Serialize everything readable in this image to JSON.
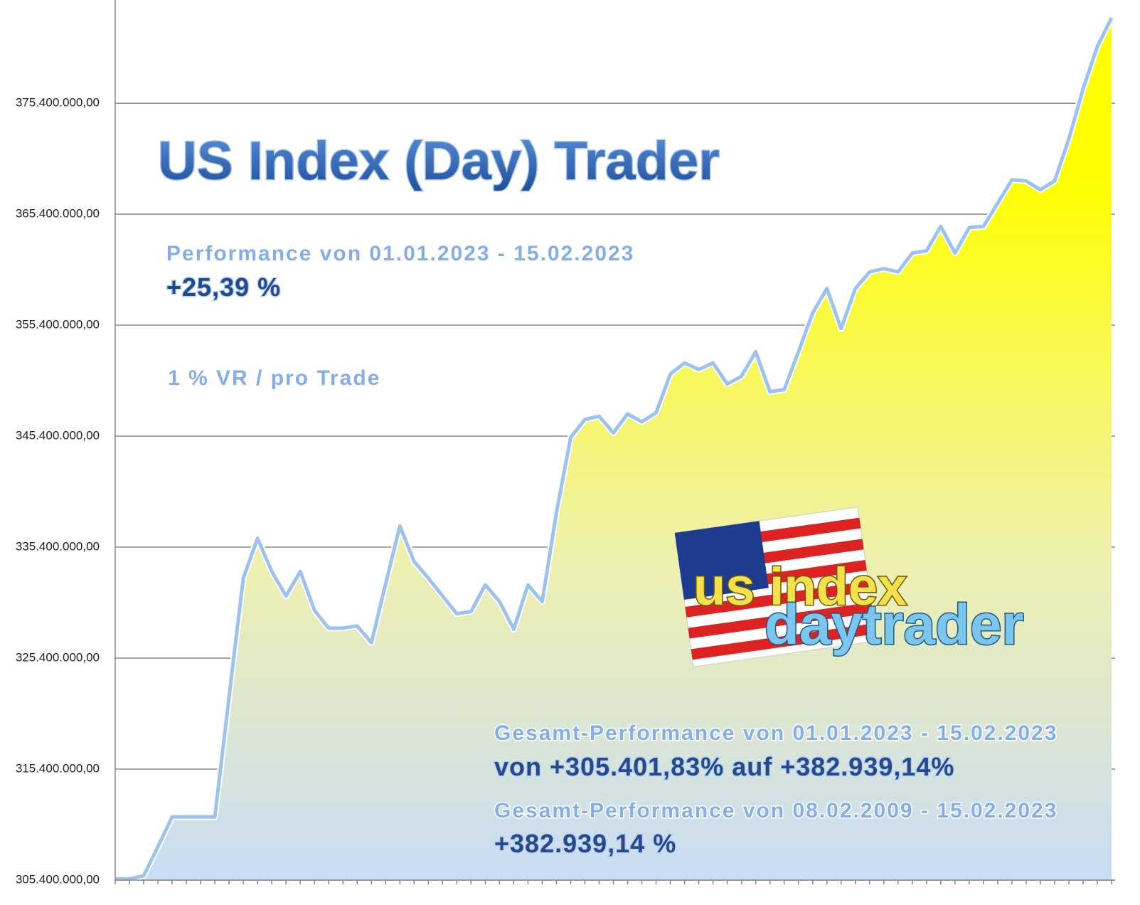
{
  "chart_data": {
    "type": "area",
    "title": "US Index (Day) Trader",
    "annotations": [
      "Performance  von  01.01.2023 - 15.02.2023",
      "+25,39 %",
      "1 % VR / pro Trade",
      "Gesamt-Performance  von  01.01.2023 - 15.02.2023",
      "von +305.401,83% auf  +382.939,14%",
      "Gesamt-Performance  von  08.02.2009 - 15.02.2023",
      "+382.939,14 %"
    ],
    "logo": [
      "us index",
      "daytrader"
    ],
    "values": [
      305500000,
      305500000,
      305800000,
      308400000,
      311100000,
      311100000,
      311100000,
      311100000,
      321900000,
      332600000,
      336200000,
      333200000,
      331000000,
      333200000,
      329700000,
      328100000,
      328100000,
      328300000,
      326800000,
      332100000,
      337300000,
      334100000,
      332600000,
      331000000,
      329400000,
      329600000,
      332000000,
      330500000,
      328000000,
      332000000,
      330500000,
      338500000,
      345300000,
      346900000,
      347200000,
      345700000,
      347400000,
      346700000,
      347500000,
      351000000,
      352000000,
      351400000,
      352000000,
      350100000,
      350800000,
      353000000,
      349400000,
      349600000,
      353000000,
      356500000,
      358700000,
      355100000,
      358700000,
      360200000,
      360500000,
      360200000,
      361900000,
      362100000,
      364300000,
      361900000,
      364200000,
      364300000,
      366400000,
      368500000,
      368400000,
      367600000,
      368400000,
      372200000,
      376700000,
      380500000,
      383100000
    ],
    "color": "#9cc3ec",
    "fill_colors": [
      "#ffff00",
      "#c9dcf5"
    ],
    "ylim": [
      305400000,
      384700000
    ],
    "yticks": [
      {
        "value": 305400000,
        "label": "305.400.000,00"
      },
      {
        "value": 315400000,
        "label": "315.400.000,00"
      },
      {
        "value": 325400000,
        "label": "325.400.000,00"
      },
      {
        "value": 335400000,
        "label": "335.400.000,00"
      },
      {
        "value": 345400000,
        "label": "345.400.000,00"
      },
      {
        "value": 355400000,
        "label": "355.400.000,00"
      },
      {
        "value": 365400000,
        "label": "365.400.000,00"
      },
      {
        "value": 375400000,
        "label": "375.400.000,00"
      }
    ],
    "grid": true
  }
}
